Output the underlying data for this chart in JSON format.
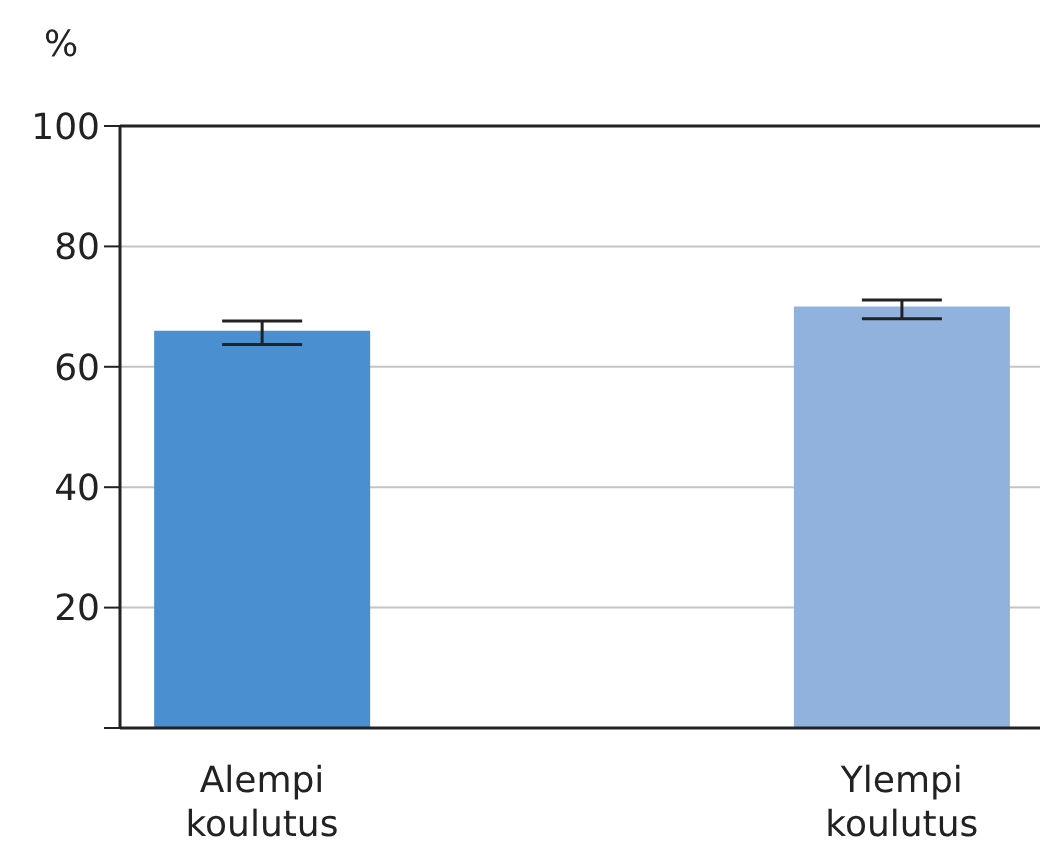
{
  "chart_data": {
    "type": "bar",
    "ylabel": "%",
    "categories": [
      "Alempi koulutus",
      "Ylempi koulutus"
    ],
    "values": [
      66,
      70
    ],
    "colors": [
      "#4a8fcf",
      "#92b2de"
    ],
    "errors": [
      [
        63.7,
        67.6
      ],
      [
        68,
        71.1
      ]
    ],
    "ylim": [
      0,
      100
    ],
    "yticks": [
      {
        "value": 0,
        "label": null
      },
      20,
      40,
      60,
      80,
      100
    ],
    "grid": "y",
    "legend": false
  }
}
